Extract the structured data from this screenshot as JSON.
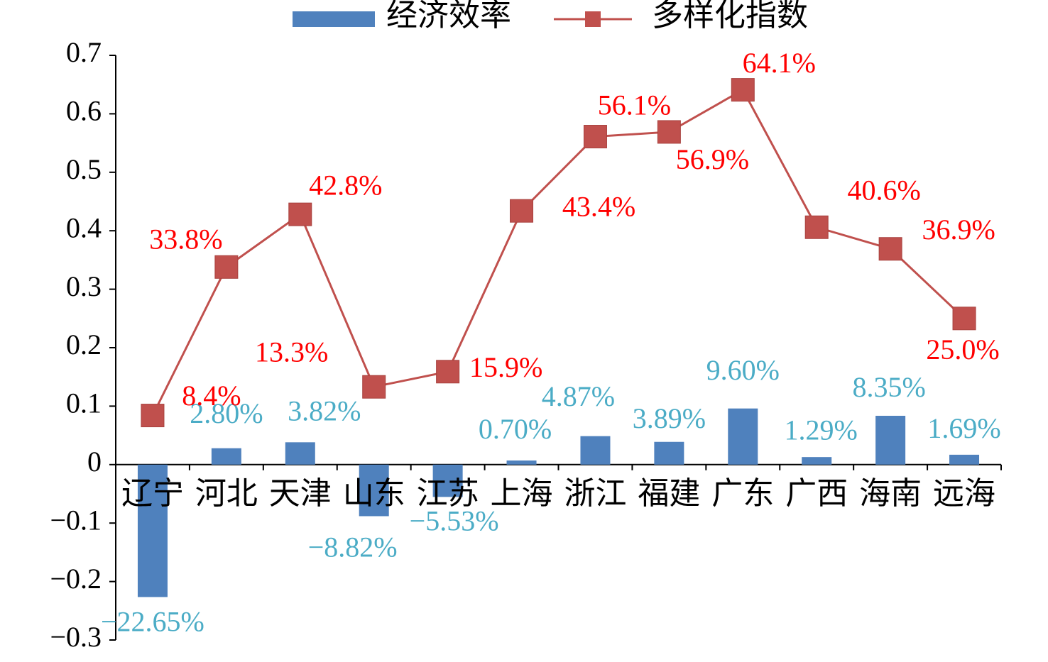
{
  "chart_data": {
    "type": "bar_line",
    "categories": [
      "辽宁",
      "河北",
      "天津",
      "山东",
      "江苏",
      "上海",
      "浙江",
      "福建",
      "广东",
      "广西",
      "海南",
      "远海"
    ],
    "series": [
      {
        "name": "经济效率",
        "type": "bar",
        "color": "#4f81bd",
        "label_color": "#4bacc6",
        "values": [
          -0.2265,
          0.028,
          0.0382,
          -0.0882,
          -0.0553,
          0.007,
          0.0487,
          0.0389,
          0.096,
          0.0129,
          0.0835,
          0.0169
        ],
        "value_labels": [
          "−22.65%",
          "2.80%",
          "3.82%",
          "−8.82%",
          "−5.53%",
          "0.70%",
          "4.87%",
          "3.89%",
          "9.60%",
          "1.29%",
          "8.35%",
          "1.69%"
        ]
      },
      {
        "name": "多样化指数",
        "type": "line",
        "color": "#c0504d",
        "label_color": "#ff0000",
        "values": [
          0.084,
          0.338,
          0.428,
          0.133,
          0.159,
          0.434,
          0.561,
          0.569,
          0.641,
          0.406,
          0.369,
          0.25
        ],
        "value_labels": [
          "8.4%",
          "33.8%",
          "42.8%",
          "13.3%",
          "15.9%",
          "43.4%",
          "56.1%",
          "56.9%",
          "64.1%",
          "40.6%",
          "36.9%",
          "25.0%"
        ]
      }
    ],
    "ylim": [
      -0.3,
      0.7
    ],
    "yticks": [
      {
        "value": -0.3,
        "label": "−0.3"
      },
      {
        "value": -0.2,
        "label": "−0.2"
      },
      {
        "value": -0.1,
        "label": "−0.1"
      },
      0,
      0.1,
      0.2,
      0.3,
      0.4,
      0.5,
      0.6,
      0.7
    ],
    "legend": "top",
    "grid": false
  }
}
